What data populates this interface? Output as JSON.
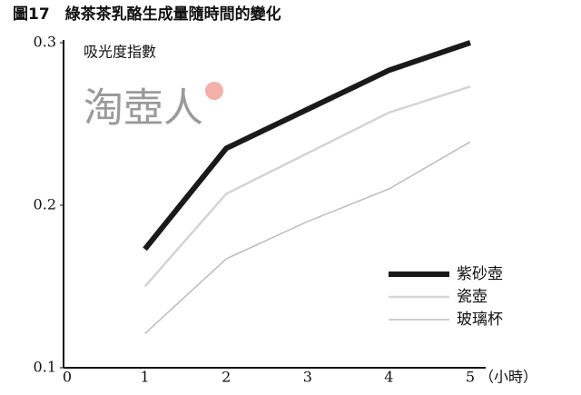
{
  "chart_data": {
    "type": "line",
    "title": "圖17　綠茶茶乳酪生成量隨時間的變化",
    "y_label": "吸光度指數",
    "x_unit_label": "（小時）",
    "watermark": "淘壺人",
    "x": [
      1,
      2,
      3,
      4,
      5
    ],
    "xlim": [
      0,
      5
    ],
    "xticks": [
      0,
      1,
      2,
      3,
      4,
      5
    ],
    "ylim": [
      0.1,
      0.3
    ],
    "yticks": [
      0.1,
      0.2,
      0.3
    ],
    "grid": false,
    "legend": "lower right",
    "series": [
      {
        "name": "紫砂壺",
        "color": "#1a1a1a",
        "line_width": 6,
        "values": [
          0.173,
          0.235,
          0.259,
          0.283,
          0.3
        ]
      },
      {
        "name": "瓷壺",
        "color": "#d4d4d4",
        "line_width": 2.5,
        "values": [
          0.15,
          0.207,
          0.232,
          0.257,
          0.273
        ]
      },
      {
        "name": "玻璃杯",
        "color": "#bdbdbd",
        "line_width": 1.5,
        "values": [
          0.121,
          0.167,
          0.19,
          0.21,
          0.239
        ]
      }
    ]
  }
}
